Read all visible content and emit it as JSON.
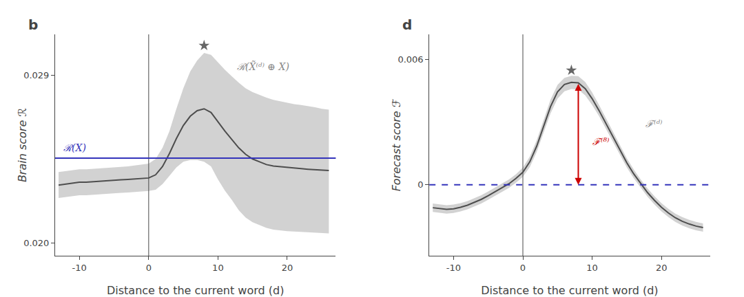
{
  "chart_data": [
    {
      "type": "line",
      "title": "b",
      "xlabel": "Distance to the current word (d)",
      "ylabel": "Brain score ℛ",
      "x": [
        -13,
        -12,
        -11,
        -10,
        -9,
        -8,
        -7,
        -6,
        -5,
        -4,
        -3,
        -2,
        -1,
        0,
        1,
        2,
        3,
        4,
        5,
        6,
        7,
        8,
        9,
        10,
        11,
        12,
        13,
        14,
        15,
        16,
        17,
        18,
        19,
        20,
        21,
        22,
        23,
        24,
        25,
        26
      ],
      "values": [
        0.0231,
        0.02315,
        0.0232,
        0.02325,
        0.02325,
        0.02328,
        0.0233,
        0.02332,
        0.02335,
        0.02338,
        0.0234,
        0.02342,
        0.02345,
        0.02348,
        0.02365,
        0.0241,
        0.0248,
        0.0256,
        0.0263,
        0.0268,
        0.0271,
        0.0272,
        0.027,
        0.0265,
        0.026,
        0.02555,
        0.0251,
        0.02475,
        0.0245,
        0.02435,
        0.0242,
        0.02412,
        0.02408,
        0.02405,
        0.024,
        0.02398,
        0.02395,
        0.02392,
        0.0239,
        0.02388
      ],
      "upper": [
        0.0238,
        0.02385,
        0.0239,
        0.02395,
        0.02395,
        0.02398,
        0.024,
        0.02402,
        0.02405,
        0.02408,
        0.0241,
        0.02415,
        0.0242,
        0.02425,
        0.0245,
        0.0251,
        0.026,
        0.0272,
        0.0283,
        0.0292,
        0.0298,
        0.0302,
        0.0301,
        0.0297,
        0.0293,
        0.02895,
        0.0286,
        0.0283,
        0.0281,
        0.02795,
        0.0278,
        0.02768,
        0.0276,
        0.02752,
        0.02745,
        0.0274,
        0.02735,
        0.02728,
        0.0272,
        0.02715
      ],
      "lower": [
        0.0224,
        0.02245,
        0.0225,
        0.02255,
        0.02255,
        0.02258,
        0.0226,
        0.02262,
        0.02265,
        0.02268,
        0.0227,
        0.02272,
        0.02275,
        0.02278,
        0.02285,
        0.02315,
        0.0236,
        0.02405,
        0.02435,
        0.02445,
        0.02445,
        0.02435,
        0.0241,
        0.0234,
        0.0228,
        0.0223,
        0.02175,
        0.02135,
        0.0211,
        0.02095,
        0.0208,
        0.0207,
        0.02065,
        0.02062,
        0.0206,
        0.02058,
        0.02056,
        0.02055,
        0.02053,
        0.0205
      ],
      "color": "#4d4d4d",
      "xlim": [
        -13.5,
        27
      ],
      "xticks": [
        -10,
        0,
        10,
        20
      ],
      "ylim": [
        0.0193,
        0.0312
      ],
      "yticks": [
        {
          "value": 0.02,
          "label": "0.020"
        },
        0.029
      ],
      "grid": false,
      "hline": {
        "y": 0.02455,
        "color": "#3333bb",
        "line_style": "solid"
      },
      "vline": {
        "x": 0,
        "color": "#666666"
      },
      "star": {
        "x": 8,
        "y": 0.0306,
        "marker": "star",
        "color": "#666666"
      },
      "annotations": [
        {
          "text": "ℛ(X̃⁽ᵈ⁾ ⊕ X)",
          "x": 12.5,
          "y": 0.0291,
          "color": "#888888",
          "anchor": "bottom"
        },
        {
          "text": "ℛ(X)",
          "x": -12.5,
          "y": 0.0251,
          "color": "#3333bb",
          "anchor": "middle"
        }
      ]
    },
    {
      "type": "line",
      "title": "d",
      "xlabel": "Distance to the current word (d)",
      "ylabel": "Forecast score ℱ",
      "x": [
        -13,
        -12,
        -11,
        -10,
        -9,
        -8,
        -7,
        -6,
        -5,
        -4,
        -3,
        -2,
        -1,
        0,
        1,
        2,
        3,
        4,
        5,
        6,
        7,
        8,
        9,
        10,
        11,
        12,
        13,
        14,
        15,
        16,
        17,
        18,
        19,
        20,
        21,
        22,
        23,
        24,
        25,
        26
      ],
      "values": [
        -0.0011,
        -0.00115,
        -0.00118,
        -0.00115,
        -0.00108,
        -0.00098,
        -0.00085,
        -0.0007,
        -0.00052,
        -0.00033,
        -0.00015,
        5e-05,
        0.0003,
        0.0006,
        0.0011,
        0.00185,
        0.0028,
        0.00375,
        0.00445,
        0.0048,
        0.0049,
        0.00488,
        0.0046,
        0.00412,
        0.00355,
        0.00292,
        0.00228,
        0.00165,
        0.00105,
        0.00052,
        5e-05,
        -0.00038,
        -0.00075,
        -0.00108,
        -0.00135,
        -0.00158,
        -0.00175,
        -0.00188,
        -0.00198,
        -0.00205
      ],
      "upper": [
        -0.0009,
        -0.00095,
        -0.00098,
        -0.00095,
        -0.00088,
        -0.00078,
        -0.00065,
        -0.0005,
        -0.00032,
        -0.00013,
        5e-05,
        0.00025,
        0.0005,
        0.00082,
        0.00135,
        0.00213,
        0.0031,
        0.00408,
        0.00478,
        0.00512,
        0.00522,
        0.0052,
        0.00492,
        0.00442,
        0.00382,
        0.00318,
        0.00252,
        0.00188,
        0.00127,
        0.00073,
        0.00025,
        -0.00018,
        -0.00055,
        -0.00088,
        -0.00115,
        -0.00138,
        -0.00155,
        -0.00168,
        -0.00178,
        -0.00185
      ],
      "lower": [
        -0.0013,
        -0.00135,
        -0.00138,
        -0.00135,
        -0.00128,
        -0.00118,
        -0.00105,
        -0.0009,
        -0.00072,
        -0.00053,
        -0.00035,
        -0.00015,
        0.0001,
        0.00038,
        0.00085,
        0.00157,
        0.0025,
        0.00342,
        0.00412,
        0.00448,
        0.00458,
        0.00456,
        0.00428,
        0.00382,
        0.00328,
        0.00266,
        0.00204,
        0.00142,
        0.00083,
        0.00031,
        -0.00015,
        -0.00058,
        -0.00095,
        -0.00128,
        -0.00155,
        -0.00178,
        -0.00195,
        -0.00208,
        -0.00218,
        -0.00225
      ],
      "color": "#4d4d4d",
      "xlim": [
        -13.5,
        27
      ],
      "xticks": [
        -10,
        0,
        10,
        20
      ],
      "ylim": [
        -0.0034,
        0.0072
      ],
      "yticks": [
        0,
        0.006
      ],
      "grid": false,
      "hline": {
        "y": 0.0,
        "color": "#3333bb",
        "line_style": "dashed"
      },
      "vline": {
        "x": 0,
        "color": "#666666"
      },
      "star": {
        "x": 7,
        "y": 0.00548,
        "marker": "star",
        "color": "#666666"
      },
      "arrow": {
        "x": 8,
        "y_from": 0.00488,
        "y_to": 0.0,
        "color": "#cc0000"
      },
      "annotations": [
        {
          "text": "ℱ⁽⁸⁾",
          "x": 9.8,
          "y": 0.00205,
          "color": "#cc0000",
          "anchor": "middle"
        },
        {
          "text": "ℱ⁽ᵈ⁾",
          "x": 17.5,
          "y": 0.0026,
          "color": "#888888",
          "anchor": "bottom"
        }
      ]
    }
  ]
}
